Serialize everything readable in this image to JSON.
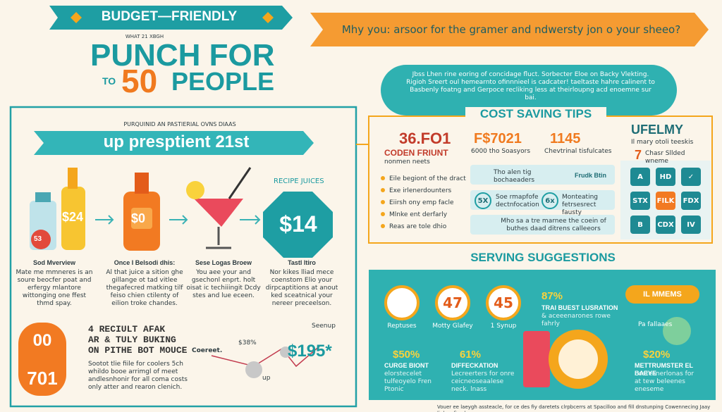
{
  "header": {
    "badge": "BUDGET—FRIENDLY",
    "kicker": "WHAT 21 XBGH",
    "title": "PUNCH FOR",
    "to": "TO",
    "count": "50",
    "people": "PEOPLE",
    "banner": "Mhy you: arsoor for the gramer and ndwersty jon o your sheeo?",
    "intro": "Jbss Lhen rine eoring of concidage fluct. Sorbecter Eloe on Backy Vlekting. Rigioh Sreert oul hemearnto ofinnnieel is cadcater! taeltaste hahre calinent to Basbenly foatng and Gerpoce recliking less at theirloupng acd enoemne sur bai."
  },
  "recipe": {
    "kicker": "PURQUINID AN PASTIERIAL OVNS DIAAS",
    "banner": "up presptient 21st",
    "bottle_price": "$24",
    "bottle_badge": "53",
    "jug_price": "$0",
    "side_title": "RECIPE JUICES",
    "total_price": "$14",
    "steps": [
      {
        "label": "Sod Mverview",
        "text": "Mate me mmneres is an soure beocfer poat and erfergy mlantore wittonging one ffest thmd spay."
      },
      {
        "label": "Once I Belsodi dhis:",
        "text": "Al that juice a sition ghe gillange ot tad vitlee thegafecred matking tilf feiso chien ctilenty of eilion troke chandes."
      },
      {
        "label": "Sese Logas Broew",
        "text": "You aee your and gsechonl enprt. holt oisat ic techiiingit Dcdy stes and lue eceen."
      },
      {
        "label": "Tastl ltiro",
        "text": "Nor kikes lliad mece coenstom Elio your dirpcaptitions at anout ked sceatnical your nereer preceelson."
      }
    ],
    "bottom": {
      "big_top": "00",
      "big_bottom": "701",
      "lines": [
        "4 RECIULT AFAK",
        "AR & TULY BUKING",
        "ON PITHE BOT MOUCE"
      ],
      "text": "Sootot tlie fiile for coolers 5ch whildo booe arrimgl of meet andlesnhonir for all coma costs only atter and rearon clenich.",
      "tag_left": "Coereet.",
      "tag_mid": "$38%",
      "tag_right": "Seenup",
      "tag_low": "up",
      "total": "$195*"
    }
  },
  "tips": {
    "title": "COST SAVING TIPS",
    "lead_value": "36.FO1",
    "lead_title": "CODEN FRIUNT",
    "lead_sub": "nonmen neets",
    "bullets": [
      "Eile begiont of the dract",
      "Exe irlenerdounters",
      "Eiirsh ony emp facle",
      "Mlnke ent derfarly",
      "Reas are tole dhio"
    ],
    "col1_value": "F$7021",
    "col1_text": "6000 tho Soasyors",
    "col2_value": "1145",
    "col2_text": "Chevtrinal tisfulcates",
    "row1_text": "Tho alen tig bochaeaders",
    "row1_tag": "Frudk Btin",
    "row2_badge1": "5X",
    "row2_text1": "Soe rmapfofe dectnfocation",
    "row2_badge2": "6x",
    "row2_text2": "Monteating fetrsesrect fausty",
    "row3_text": "Mho sa a tre marnee the coein of buthes daad ditrens calleeors",
    "side_title": "UFELMY",
    "side_sub": "Il mary otoli teeskis",
    "side_num": "7",
    "side_note": "Chasr Sllded wneme",
    "grid": [
      "A",
      "HD",
      "✓",
      "STX",
      "FILK",
      "FDX",
      "B",
      "CDX",
      "IV"
    ]
  },
  "serving": {
    "title": "SERVING SUGGESTIONS",
    "circles": [
      {
        "value": "",
        "label": "Reptuses"
      },
      {
        "value": "47",
        "label": "Motty Glafey"
      },
      {
        "value": "45",
        "label": "1 Synup"
      }
    ],
    "feature_value": "87%",
    "feature_title": "TRAI BUEST LUSRATION",
    "feature_text": "& aceeenarones rowe fahrly",
    "badge": "IL MMEMS",
    "leaf_label": "Pa fallaaes",
    "stats": [
      {
        "value": "$50%",
        "title": "CURGE BIONT",
        "text": "elorstecelet tulfeoyelo Fren Ptonic"
      },
      {
        "value": "61%",
        "title": "DIFFECKATION",
        "text": "Lecreerters for onre ceicneoseaalese neck. lnass"
      },
      {
        "value": "$20%",
        "title": "METTRUMSTER EL BAEYE",
        "text": "Ecetesnerlonas for at tew beleenes eneseme"
      }
    ]
  },
  "footer": "Vouer ee laeygh assteacle, for ce des fiy daretets clrpbcerrs at Spacilloo and fill dnstunping Cowennecing Jaay liuboy fioe bo"
}
